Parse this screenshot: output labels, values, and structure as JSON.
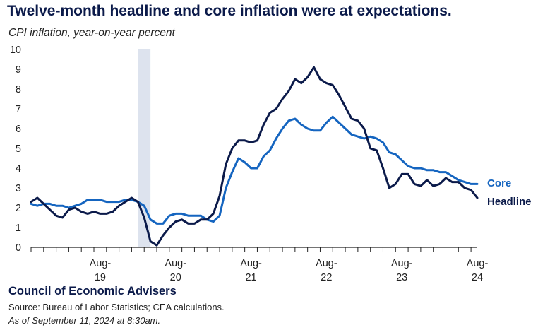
{
  "header": {
    "title": "Twelve-month headline and core inflation were at expectations.",
    "subtitle": "CPI inflation, year-on-year percent"
  },
  "footer": {
    "organization": "Council of Economic Advisers",
    "source": "Source: Bureau of Labor Statistics; CEA calculations.",
    "as_of": "As of September 11, 2024 at 8:30am."
  },
  "colors": {
    "headline": "#0b1a4a",
    "core": "#1565c0",
    "shade": "#dde3ee",
    "axis": "#222222"
  },
  "chart_data": {
    "type": "line",
    "title": "Twelve-month headline and core inflation were at expectations.",
    "ylabel": "CPI inflation, year-on-year percent",
    "ylim": [
      0,
      10
    ],
    "yticks": [
      0,
      1,
      2,
      3,
      4,
      5,
      6,
      7,
      8,
      9,
      10
    ],
    "x_start": "2018-09",
    "x_end": "2024-08",
    "x_tick_labels": [
      {
        "month": "2019-08",
        "line1": "Aug-",
        "line2": "19"
      },
      {
        "month": "2020-08",
        "line1": "Aug-",
        "line2": "20"
      },
      {
        "month": "2021-08",
        "line1": "Aug-",
        "line2": "21"
      },
      {
        "month": "2022-08",
        "line1": "Aug-",
        "line2": "22"
      },
      {
        "month": "2023-08",
        "line1": "Aug-",
        "line2": "23"
      },
      {
        "month": "2024-08",
        "line1": "Aug-",
        "line2": "24"
      }
    ],
    "shaded_region": {
      "start": "2020-02",
      "end": "2020-04"
    },
    "grid": false,
    "legend": "right",
    "series": [
      {
        "name": "Core",
        "color": "#1565c0",
        "values": [
          2.2,
          2.1,
          2.2,
          2.2,
          2.1,
          2.1,
          2.0,
          2.1,
          2.2,
          2.4,
          2.4,
          2.4,
          2.3,
          2.3,
          2.3,
          2.4,
          2.4,
          2.3,
          2.1,
          1.4,
          1.2,
          1.2,
          1.6,
          1.7,
          1.7,
          1.6,
          1.6,
          1.6,
          1.4,
          1.3,
          1.6,
          3.0,
          3.8,
          4.5,
          4.3,
          4.0,
          4.0,
          4.6,
          4.9,
          5.5,
          6.0,
          6.4,
          6.5,
          6.2,
          6.0,
          5.9,
          5.9,
          6.3,
          6.6,
          6.3,
          6.0,
          5.7,
          5.6,
          5.5,
          5.6,
          5.5,
          5.3,
          4.8,
          4.7,
          4.4,
          4.1,
          4.0,
          4.0,
          3.9,
          3.9,
          3.8,
          3.8,
          3.6,
          3.4,
          3.3,
          3.2,
          3.2
        ]
      },
      {
        "name": "Headline",
        "color": "#0b1a4a",
        "values": [
          2.3,
          2.5,
          2.2,
          1.9,
          1.6,
          1.5,
          1.9,
          2.0,
          1.8,
          1.7,
          1.8,
          1.7,
          1.7,
          1.8,
          2.1,
          2.3,
          2.5,
          2.3,
          1.5,
          0.3,
          0.1,
          0.6,
          1.0,
          1.3,
          1.4,
          1.2,
          1.2,
          1.4,
          1.4,
          1.7,
          2.6,
          4.2,
          5.0,
          5.4,
          5.4,
          5.3,
          5.4,
          6.2,
          6.8,
          7.0,
          7.5,
          7.9,
          8.5,
          8.3,
          8.6,
          9.1,
          8.5,
          8.3,
          8.2,
          7.7,
          7.1,
          6.5,
          6.4,
          6.0,
          5.0,
          4.9,
          4.0,
          3.0,
          3.2,
          3.7,
          3.7,
          3.2,
          3.1,
          3.4,
          3.1,
          3.2,
          3.5,
          3.3,
          3.3,
          3.0,
          2.9,
          2.5
        ]
      }
    ]
  }
}
